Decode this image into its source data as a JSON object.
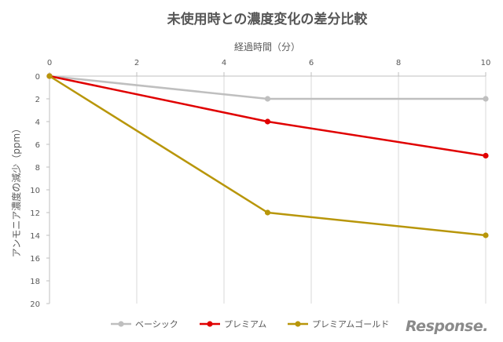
{
  "chart_data": {
    "type": "line",
    "title": "未使用時との濃度変化の差分比較",
    "xlabel": "経過時間（分）",
    "ylabel": "アンモニア濃度の減少（ppm）",
    "x": [
      0,
      5,
      10
    ],
    "x_ticks": [
      "0",
      "2",
      "4",
      "6",
      "8",
      "10"
    ],
    "y_ticks": [
      "0",
      "2",
      "4",
      "6",
      "8",
      "10",
      "12",
      "14",
      "16",
      "18",
      "20"
    ],
    "xlim": [
      0,
      10
    ],
    "ylim": [
      0,
      20
    ],
    "y_inverted": true,
    "x_axis_position": "top",
    "grid": "vertical",
    "legend_position": "bottom",
    "series": [
      {
        "name": "ベーシック",
        "values": [
          0,
          2,
          2
        ],
        "color": "#bfbfbf"
      },
      {
        "name": "プレミアム",
        "values": [
          0,
          4,
          7
        ],
        "color": "#e00000"
      },
      {
        "name": "プレミアムゴールド",
        "values": [
          0,
          12,
          14
        ],
        "color": "#b8960a"
      }
    ]
  },
  "watermark": "Response."
}
